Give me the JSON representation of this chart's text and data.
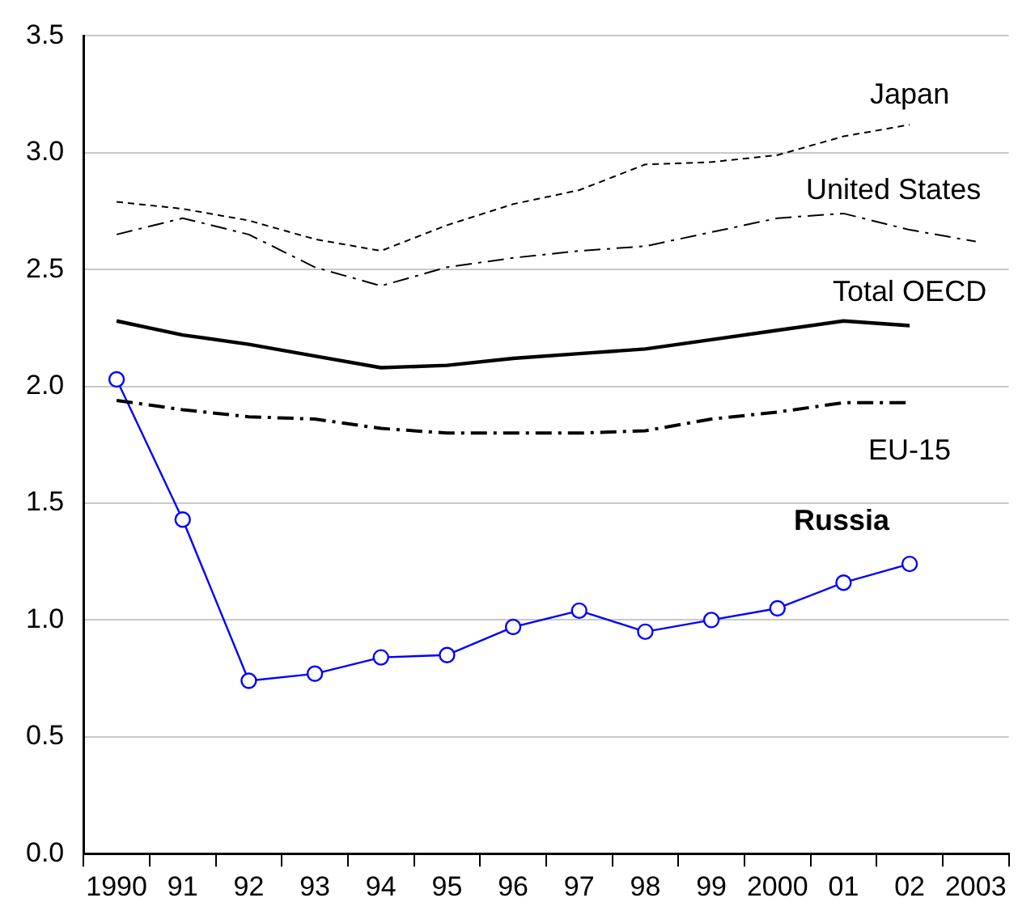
{
  "chart_data": {
    "type": "line",
    "categories": [
      "1990",
      "91",
      "92",
      "93",
      "94",
      "95",
      "96",
      "97",
      "98",
      "99",
      "2000",
      "01",
      "02",
      "2003"
    ],
    "series": [
      {
        "name": "Japan",
        "color": "#000000",
        "line_style": "dashed",
        "marker": "none",
        "values": [
          2.79,
          2.76,
          2.71,
          2.63,
          2.58,
          2.69,
          2.78,
          2.84,
          2.95,
          2.96,
          2.99,
          3.07,
          3.12,
          null
        ]
      },
      {
        "name": "United States",
        "color": "#000000",
        "line_style": "dashdot",
        "marker": "none",
        "values": [
          2.65,
          2.72,
          2.65,
          2.51,
          2.43,
          2.51,
          2.55,
          2.58,
          2.6,
          2.66,
          2.72,
          2.74,
          2.67,
          2.62
        ]
      },
      {
        "name": "Total OECD",
        "color": "#000000",
        "line_style": "solid",
        "marker": "none",
        "values": [
          2.28,
          2.22,
          2.18,
          2.13,
          2.08,
          2.09,
          2.12,
          2.14,
          2.16,
          2.2,
          2.24,
          2.28,
          2.26,
          null
        ]
      },
      {
        "name": "EU-15",
        "color": "#000000",
        "line_style": "dashdot",
        "marker": "none",
        "values": [
          1.94,
          1.9,
          1.87,
          1.86,
          1.82,
          1.8,
          1.8,
          1.8,
          1.81,
          1.86,
          1.89,
          1.93,
          1.93,
          null
        ]
      },
      {
        "name": "Russia",
        "color": "#0000ff",
        "line_style": "solid",
        "marker": "circle",
        "values": [
          2.03,
          1.43,
          0.74,
          0.77,
          0.84,
          0.85,
          0.97,
          1.04,
          0.95,
          1.0,
          1.05,
          1.16,
          1.24,
          null
        ]
      }
    ],
    "ylim": [
      0,
      3.5
    ],
    "yticks": [
      {
        "value": 0,
        "label": "0.0"
      },
      {
        "value": 0.5,
        "label": "0.5"
      },
      {
        "value": 1,
        "label": "1.0"
      },
      {
        "value": 1.5,
        "label": "1.5"
      },
      {
        "value": 2,
        "label": "2.0"
      },
      {
        "value": 2.5,
        "label": "2.5"
      },
      {
        "value": 3,
        "label": "3.0"
      },
      {
        "value": 3.5,
        "label": "3.5"
      }
    ],
    "grid": "y",
    "legend": false
  }
}
